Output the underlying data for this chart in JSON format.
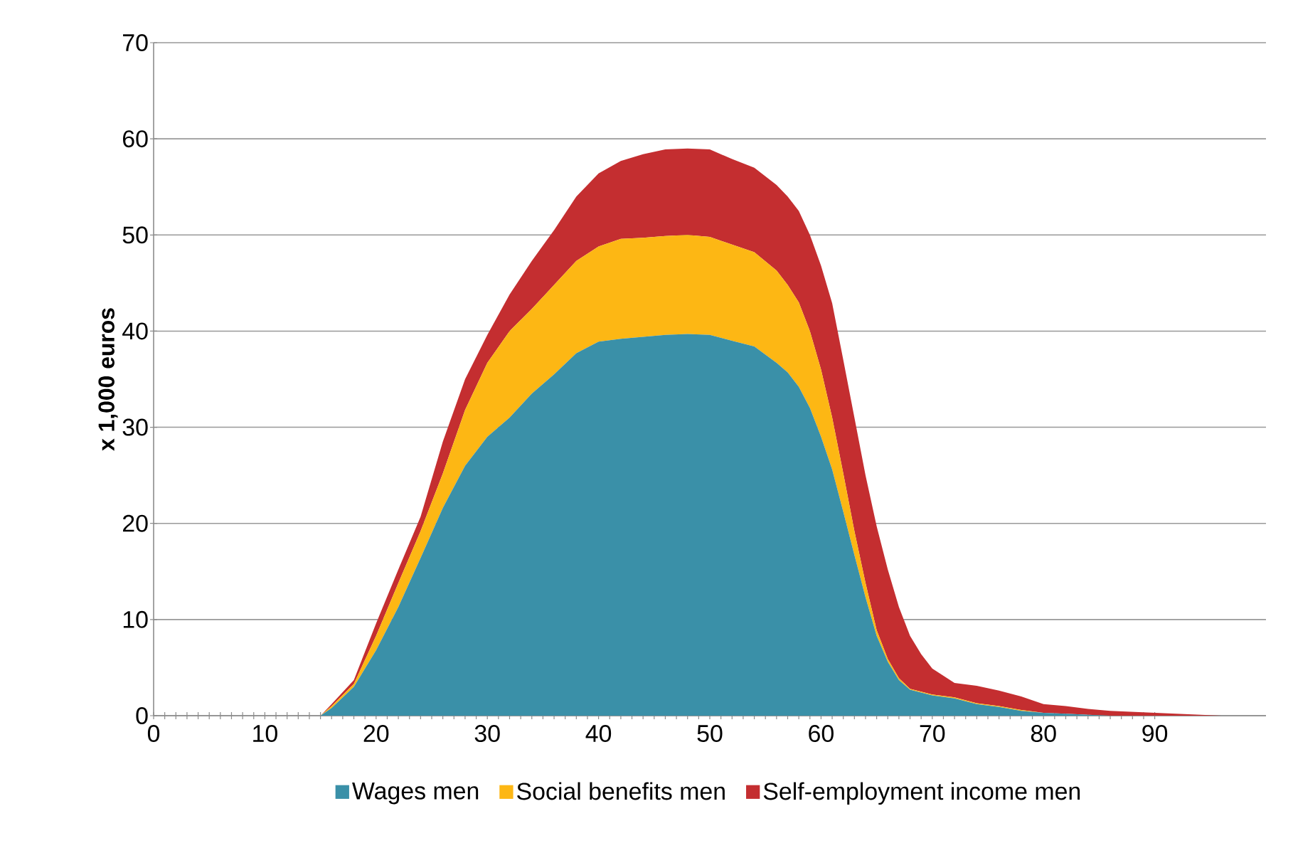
{
  "chart_data": {
    "type": "area",
    "stacked": true,
    "ylabel": "x 1,000 euros",
    "x": [
      0,
      14,
      15,
      16,
      18,
      20,
      22,
      24,
      26,
      28,
      30,
      32,
      34,
      36,
      38,
      40,
      42,
      44,
      46,
      48,
      50,
      52,
      54,
      56,
      57,
      58,
      59,
      60,
      61,
      62,
      63,
      64,
      65,
      66,
      67,
      68,
      69,
      70,
      72,
      74,
      76,
      78,
      80,
      82,
      84,
      86,
      88,
      90,
      92,
      94,
      96,
      98
    ],
    "series": [
      {
        "name": "Wages men",
        "color": "#3a90a8",
        "values": [
          0,
          0,
          0,
          0.8,
          3,
          6.8,
          11.3,
          16.4,
          21.6,
          26,
          29,
          31,
          33.5,
          35.5,
          37.7,
          38.9,
          39.2,
          39.4,
          39.6,
          39.7,
          39.6,
          39,
          38.4,
          36.7,
          35.7,
          34.2,
          32,
          29,
          25.6,
          21.2,
          16.7,
          12.3,
          8.3,
          5.6,
          3.7,
          2.7,
          2.4,
          2.1,
          1.8,
          1.2,
          0.9,
          0.5,
          0.3,
          0.2,
          0.1,
          0,
          0,
          0,
          0,
          0,
          0,
          0
        ]
      },
      {
        "name": "Social benefits men",
        "color": "#fdb714",
        "values": [
          0,
          0,
          0,
          0.2,
          0.3,
          1.5,
          2.5,
          2.8,
          3.6,
          5.8,
          7.7,
          9,
          8.8,
          9.3,
          9.6,
          9.9,
          10.4,
          10.3,
          10.3,
          10.3,
          10.2,
          10,
          9.8,
          9.6,
          9.1,
          8.8,
          8,
          7,
          5.4,
          4,
          2.5,
          1.5,
          0.6,
          0.3,
          0.2,
          0.1,
          0.1,
          0.1,
          0.1,
          0.1,
          0.1,
          0.1,
          0,
          0,
          0,
          0,
          0,
          0,
          0,
          0,
          0,
          0
        ]
      },
      {
        "name": "Self-employment income men",
        "color": "#c42e30",
        "values": [
          0,
          0,
          0,
          0.2,
          0.4,
          1.3,
          1.4,
          1.5,
          3.3,
          3.2,
          2.9,
          3.8,
          5,
          5.7,
          6.7,
          7.6,
          8.1,
          8.7,
          9,
          9,
          9.1,
          8.9,
          8.8,
          8.9,
          9.2,
          9.5,
          10,
          10.8,
          11.9,
          11.8,
          11.8,
          11.2,
          10.8,
          9.3,
          7.4,
          5.5,
          3.9,
          2.7,
          1.5,
          1.8,
          1.6,
          1.4,
          0.9,
          0.8,
          0.6,
          0.5,
          0.4,
          0.3,
          0.2,
          0.1,
          0,
          0
        ]
      }
    ],
    "xlim": [
      0,
      100
    ],
    "xticks": [
      0,
      10,
      20,
      30,
      40,
      50,
      60,
      70,
      80,
      90
    ],
    "ylim": [
      0,
      70
    ],
    "yticks": [
      0,
      10,
      20,
      30,
      40,
      50,
      60,
      70
    ],
    "grid": "y",
    "legend": "bottom"
  }
}
